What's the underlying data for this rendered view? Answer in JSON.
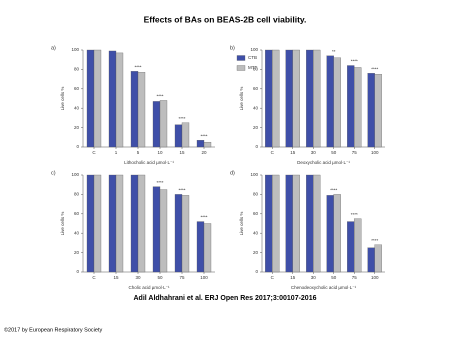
{
  "header": {
    "title": "Effects of BAs on BEAS-2B cell viability."
  },
  "chart_data": [
    {
      "type": "bar",
      "label": "a)",
      "ylabel": "Live cells %",
      "xlabel": "Lithocholic acid µmol·L⁻¹",
      "categories": [
        "C",
        "1",
        "5",
        "10",
        "15",
        "20"
      ],
      "series": [
        {
          "name": "CTB",
          "color": "#3f4fa8",
          "values": [
            100,
            99,
            78,
            47,
            23,
            7
          ]
        },
        {
          "name": "MTT",
          "color": "#bdbdbd",
          "values": [
            100,
            97,
            77,
            48,
            25,
            5
          ]
        }
      ],
      "significance": [
        null,
        null,
        "****",
        "****",
        "****",
        "****"
      ],
      "ylim": [
        0,
        100
      ],
      "yticks": [
        0,
        20,
        40,
        60,
        80,
        100
      ],
      "legend": "right"
    },
    {
      "type": "bar",
      "label": "b)",
      "ylabel": "Live cells %",
      "xlabel": "Deoxycholic acid µmol·L⁻¹",
      "categories": [
        "C",
        "15",
        "30",
        "50",
        "75",
        "100"
      ],
      "series": [
        {
          "color": "#3f4fa8",
          "values": [
            100,
            100,
            100,
            94,
            84,
            76
          ]
        },
        {
          "color": "#bdbdbd",
          "values": [
            100,
            100,
            100,
            92,
            82,
            75
          ]
        }
      ],
      "significance": [
        null,
        null,
        null,
        "**",
        "****",
        "****"
      ],
      "ylim": [
        0,
        100
      ],
      "yticks": [
        0,
        20,
        40,
        60,
        80,
        100
      ]
    },
    {
      "type": "bar",
      "label": "c)",
      "ylabel": "Live cells %",
      "xlabel": "Cholic acid µmol·L⁻¹",
      "categories": [
        "C",
        "15",
        "30",
        "50",
        "75",
        "100"
      ],
      "series": [
        {
          "color": "#3f4fa8",
          "values": [
            100,
            100,
            100,
            88,
            80,
            52
          ]
        },
        {
          "color": "#bdbdbd",
          "values": [
            100,
            100,
            100,
            85,
            79,
            50
          ]
        }
      ],
      "significance": [
        null,
        null,
        null,
        "****",
        "****",
        "****"
      ],
      "ylim": [
        0,
        100
      ],
      "yticks": [
        0,
        20,
        40,
        60,
        80,
        100
      ]
    },
    {
      "type": "bar",
      "label": "d)",
      "ylabel": "Live cells %",
      "xlabel": "Chenodeoxycholic acid µmol·L⁻¹",
      "categories": [
        "C",
        "15",
        "30",
        "50",
        "75",
        "100"
      ],
      "series": [
        {
          "color": "#3f4fa8",
          "values": [
            100,
            100,
            100,
            79,
            52,
            25
          ]
        },
        {
          "color": "#bdbdbd",
          "values": [
            100,
            100,
            100,
            80,
            55,
            28
          ]
        }
      ],
      "significance": [
        null,
        null,
        null,
        "****",
        "****",
        "****"
      ],
      "ylim": [
        0,
        100
      ],
      "yticks": [
        0,
        20,
        40,
        60,
        80,
        100
      ]
    }
  ],
  "footer": {
    "citation": "Adil Aldhahrani et al. ERJ Open Res 2017;3:00107-2016",
    "copyright": "©2017 by European Respiratory Society"
  }
}
